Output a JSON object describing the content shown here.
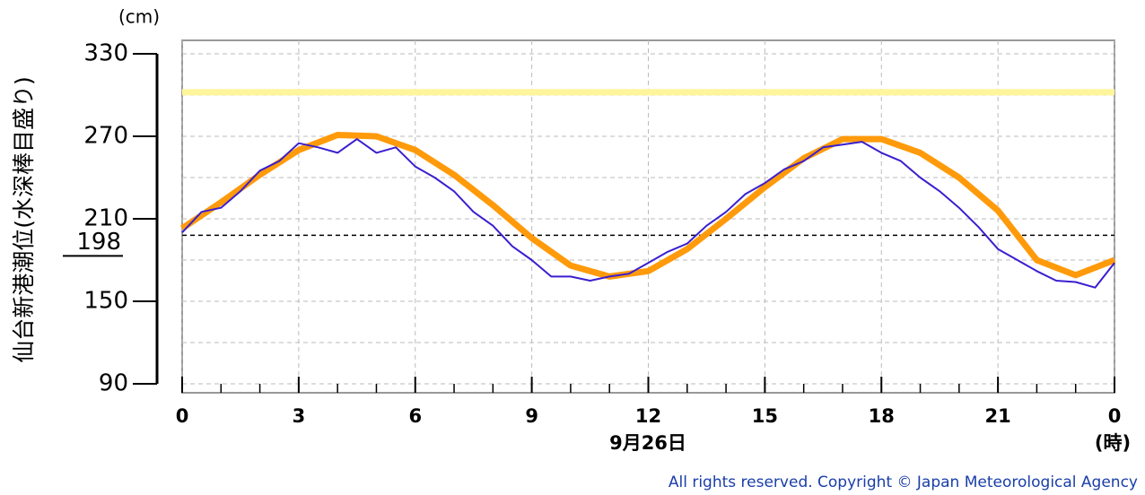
{
  "chart_data": {
    "type": "line",
    "unit_label": "(cm)",
    "ylabel": "仙台新港潮位(水深棒目盛り)",
    "xlabel": "9月26日",
    "xunit_label": "(時)",
    "copyright": "All rights reserved. Copyright © Japan Meteorological Agency",
    "xlim": [
      0,
      24
    ],
    "xticks": [
      0,
      3,
      6,
      9,
      12,
      15,
      18,
      21,
      {
        "value": 24,
        "label": "0"
      }
    ],
    "xminor_step": 1,
    "ylim": [
      90,
      330
    ],
    "yticks": [
      90,
      150,
      210,
      270,
      330
    ],
    "ygrid_minor": [
      120,
      180,
      240,
      300
    ],
    "grid": true,
    "reference_lines": [
      {
        "value": 198,
        "label": "198",
        "color": "#000000"
      },
      {
        "value": 302,
        "color": "#fff59a"
      }
    ],
    "series": [
      {
        "color": "#ff9a0a",
        "x": [
          0,
          1,
          2,
          3,
          4,
          5,
          6,
          7,
          8,
          9,
          10,
          11,
          12,
          13,
          14,
          15,
          16,
          17,
          18,
          19,
          20,
          21,
          22,
          23,
          24
        ],
        "values": [
          203,
          222,
          242,
          260,
          271,
          270,
          260,
          242,
          220,
          196,
          176,
          168,
          172,
          188,
          210,
          233,
          254,
          268,
          268,
          258,
          240,
          216,
          180,
          169,
          180
        ]
      },
      {
        "color": "#3a1fd0",
        "x": [
          0,
          0.5,
          1,
          1.5,
          2,
          2.5,
          3,
          3.5,
          4,
          4.5,
          5,
          5.5,
          6,
          6.5,
          7,
          7.5,
          8,
          8.5,
          9,
          9.5,
          10,
          10.5,
          11,
          11.5,
          12,
          12.5,
          13,
          13.5,
          14,
          14.5,
          15,
          15.5,
          16,
          16.5,
          17,
          17.5,
          18,
          18.5,
          19,
          19.5,
          20,
          20.5,
          21,
          21.5,
          22,
          22.5,
          23,
          23.5,
          24
        ],
        "values": [
          200,
          215,
          218,
          230,
          245,
          252,
          265,
          262,
          258,
          268,
          258,
          262,
          248,
          240,
          230,
          215,
          205,
          190,
          180,
          168,
          168,
          165,
          168,
          170,
          178,
          186,
          192,
          205,
          215,
          228,
          236,
          246,
          252,
          262,
          264,
          266,
          258,
          252,
          240,
          230,
          218,
          204,
          188,
          180,
          172,
          165,
          164,
          160,
          178
        ]
      }
    ]
  }
}
